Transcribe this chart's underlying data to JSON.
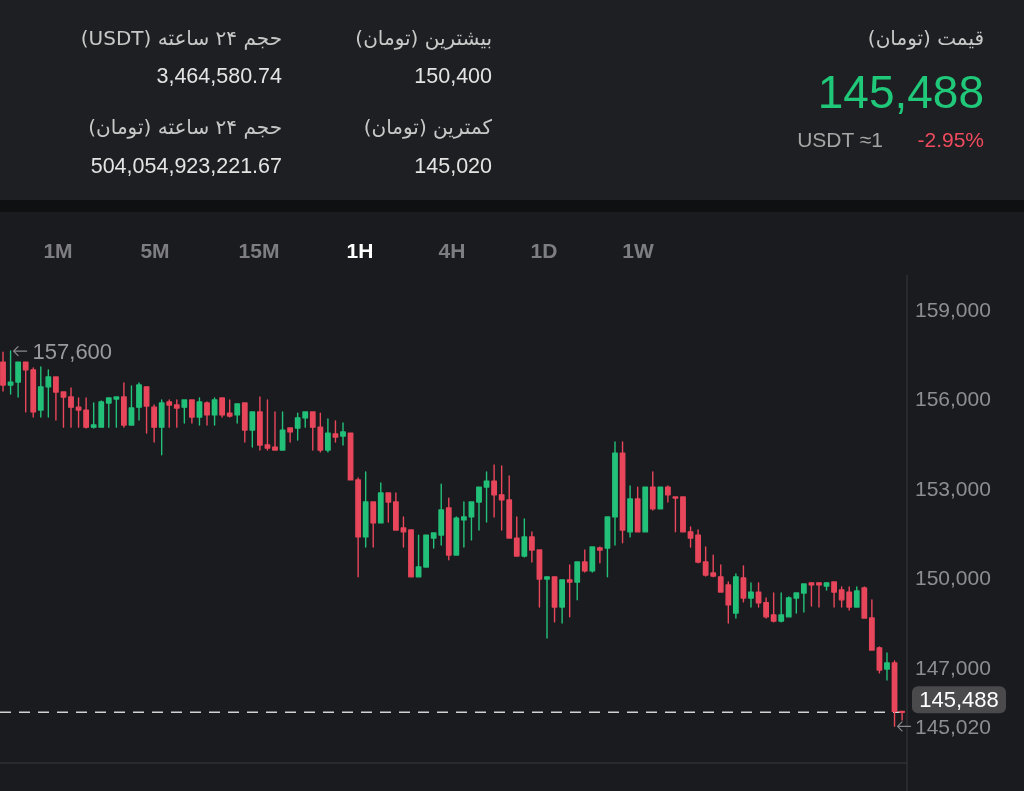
{
  "chart_data": {
    "type": "candlestick",
    "categories": [
      null,
      null,
      null,
      null,
      null,
      null,
      null,
      null,
      null,
      null,
      null,
      null,
      null,
      null,
      null,
      null,
      null,
      null,
      null,
      null,
      null,
      null,
      null,
      null,
      null,
      null,
      null,
      null,
      null,
      null,
      null,
      null,
      null,
      null,
      null,
      null,
      null,
      null,
      null,
      null,
      null,
      null,
      null,
      null,
      null,
      null,
      null,
      null,
      null,
      null,
      null,
      null,
      null,
      null,
      null,
      null,
      null,
      null,
      null,
      null,
      null,
      null,
      null,
      null,
      null,
      null,
      null,
      null,
      null,
      null,
      null,
      null,
      null,
      null,
      null,
      null,
      null,
      null,
      null,
      null,
      null,
      null,
      null,
      null,
      null,
      null,
      null,
      null,
      null,
      null,
      null,
      null,
      null,
      null,
      null,
      null,
      null,
      null,
      null,
      null,
      null,
      null,
      null,
      null,
      null,
      null,
      null,
      null,
      null,
      null,
      null,
      null,
      null,
      null,
      null,
      null,
      null,
      null,
      null,
      null
    ],
    "ohlc": [
      [
        157230,
        157560,
        156260,
        156460
      ],
      [
        156460,
        157600,
        156160,
        156560
      ],
      [
        156560,
        157230,
        156060,
        157230
      ],
      [
        157230,
        157230,
        155560,
        156970
      ],
      [
        156970,
        157030,
        155390,
        155560
      ],
      [
        155620,
        157070,
        155390,
        156400
      ],
      [
        156400,
        156970,
        155390,
        156730
      ],
      [
        156730,
        156730,
        155290,
        156230
      ],
      [
        156230,
        156230,
        155050,
        156060
      ],
      [
        156060,
        156360,
        155050,
        155720
      ],
      [
        155720,
        156030,
        155050,
        155620
      ],
      [
        155620,
        156030,
        155020,
        155050
      ],
      [
        155050,
        155860,
        155020,
        155120
      ],
      [
        155050,
        155930,
        155050,
        155890
      ],
      [
        155860,
        156030,
        155050,
        156030
      ],
      [
        155990,
        156060,
        155050,
        156060
      ],
      [
        156060,
        156530,
        155050,
        155120
      ],
      [
        155120,
        156430,
        155120,
        155690
      ],
      [
        155720,
        156530,
        155290,
        156460
      ],
      [
        156400,
        156400,
        154850,
        155760
      ],
      [
        155720,
        155790,
        154550,
        155050
      ],
      [
        155050,
        155960,
        154120,
        155860
      ],
      [
        155890,
        155960,
        155050,
        155790
      ],
      [
        155790,
        155960,
        155050,
        155690
      ],
      [
        155720,
        155960,
        155190,
        155960
      ],
      [
        155960,
        155960,
        155190,
        155390
      ],
      [
        155390,
        156030,
        155120,
        155890
      ],
      [
        155860,
        155890,
        155120,
        155460
      ],
      [
        155460,
        156030,
        155120,
        155960
      ],
      [
        156030,
        156030,
        155390,
        155460
      ],
      [
        155520,
        155960,
        155390,
        155420
      ],
      [
        155460,
        155830,
        155190,
        155830
      ],
      [
        155860,
        155860,
        154550,
        154950
      ],
      [
        154950,
        155560,
        154380,
        155560
      ],
      [
        155560,
        156060,
        154280,
        154450
      ],
      [
        154450,
        155960,
        154280,
        154350
      ],
      [
        154380,
        155560,
        154280,
        154280
      ],
      [
        154280,
        155560,
        154280,
        154950
      ],
      [
        155020,
        155020,
        154550,
        154890
      ],
      [
        155020,
        155520,
        154620,
        155360
      ],
      [
        155360,
        155560,
        155050,
        155560
      ],
      [
        155560,
        155560,
        154280,
        155050
      ],
      [
        155050,
        155520,
        154220,
        154280
      ],
      [
        154280,
        155320,
        154220,
        154850
      ],
      [
        154820,
        155260,
        154550,
        154720
      ],
      [
        154750,
        155190,
        154450,
        154890
      ],
      [
        154850,
        154850,
        153280,
        153280
      ],
      [
        153280,
        153350,
        150030,
        151370
      ],
      [
        151370,
        153550,
        151030,
        152540
      ],
      [
        152540,
        152540,
        151030,
        151840
      ],
      [
        151840,
        153180,
        151840,
        152840
      ],
      [
        152840,
        152840,
        151870,
        152540
      ],
      [
        152540,
        152840,
        151600,
        151600
      ],
      [
        151670,
        152040,
        151030,
        151540
      ],
      [
        151600,
        151600,
        150030,
        150030
      ],
      [
        150030,
        151430,
        150030,
        150360
      ],
      [
        150360,
        151430,
        150360,
        151430
      ],
      [
        151330,
        151500,
        151000,
        151500
      ],
      [
        151430,
        153140,
        151100,
        152270
      ],
      [
        152340,
        152670,
        150600,
        150760
      ],
      [
        150760,
        152040,
        150760,
        152000
      ],
      [
        151940,
        152540,
        151030,
        152040
      ],
      [
        152040,
        152540,
        151270,
        152540
      ],
      [
        152540,
        153040,
        151600,
        153040
      ],
      [
        153040,
        153550,
        151870,
        153240
      ],
      [
        153240,
        153780,
        152040,
        152780
      ],
      [
        152780,
        153750,
        151600,
        152610
      ],
      [
        152610,
        153410,
        151330,
        151330
      ],
      [
        151330,
        152040,
        150730,
        150730
      ],
      [
        150730,
        151970,
        150700,
        151370
      ],
      [
        151370,
        151540,
        150530,
        150930
      ],
      [
        150930,
        150930,
        149020,
        149960
      ],
      [
        149960,
        150030,
        147980,
        150030
      ],
      [
        150030,
        150030,
        148520,
        149020
      ],
      [
        149020,
        149930,
        148480,
        149930
      ],
      [
        149930,
        150430,
        148690,
        149860
      ],
      [
        149860,
        150530,
        149260,
        150530
      ],
      [
        150530,
        150930,
        150190,
        150230
      ],
      [
        150230,
        151030,
        150190,
        151030
      ],
      [
        151000,
        151030,
        150500,
        150930
      ],
      [
        151000,
        152040,
        150030,
        152040
      ],
      [
        152040,
        154550,
        151100,
        154180
      ],
      [
        154180,
        154550,
        151170,
        151600
      ],
      [
        151540,
        153080,
        151370,
        152640
      ],
      [
        152640,
        153040,
        151540,
        151540
      ],
      [
        151540,
        153040,
        151540,
        153040
      ],
      [
        153040,
        153550,
        152270,
        152310
      ],
      [
        152310,
        153040,
        152310,
        153040
      ],
      [
        153040,
        153080,
        152540,
        152780
      ],
      [
        152710,
        152710,
        151540,
        152670
      ],
      [
        152710,
        152710,
        151540,
        151540
      ],
      [
        151540,
        151700,
        151030,
        151330
      ],
      [
        151430,
        151600,
        150500,
        150530
      ],
      [
        150530,
        151030,
        150060,
        150090
      ],
      [
        150160,
        150760,
        150030,
        150060
      ],
      [
        150030,
        150430,
        149520,
        149520
      ],
      [
        149760,
        149860,
        148480,
        149090
      ],
      [
        148820,
        150130,
        148650,
        150030
      ],
      [
        149990,
        150400,
        149190,
        149320
      ],
      [
        149320,
        149830,
        149020,
        149520
      ],
      [
        149520,
        149830,
        149020,
        149160
      ],
      [
        149160,
        149320,
        148650,
        148690
      ],
      [
        148750,
        149490,
        148520,
        148550
      ],
      [
        148550,
        149490,
        148520,
        148750
      ],
      [
        148690,
        149360,
        148690,
        149320
      ],
      [
        149320,
        149490,
        148820,
        149490
      ],
      [
        149490,
        149790,
        148850,
        149790
      ],
      [
        149830,
        149830,
        149050,
        149760
      ],
      [
        149830,
        149830,
        149020,
        149760
      ],
      [
        149720,
        149830,
        149590,
        149830
      ],
      [
        149860,
        149860,
        149020,
        149520
      ],
      [
        149590,
        149690,
        149020,
        149260
      ],
      [
        149520,
        149690,
        148920,
        149020
      ],
      [
        149020,
        149690,
        149020,
        149560
      ],
      [
        149660,
        149690,
        148650,
        148650
      ],
      [
        148650,
        149260,
        147580,
        147580
      ],
      [
        147650,
        147680,
        146810,
        146910
      ],
      [
        146940,
        147480,
        146570,
        147140
      ],
      [
        147140,
        147210,
        145020,
        145520
      ],
      [
        145520,
        145520,
        145230,
        145488
      ]
    ],
    "colors": [
      "#e8465b",
      "#22c079",
      "#22c079",
      "#e8465b",
      "#e8465b",
      "#22c079",
      "#22c079",
      "#e8465b",
      "#e8465b",
      "#e8465b",
      "#e8465b",
      "#e8465b",
      "#22c079",
      "#22c079",
      "#22c079",
      "#22c079",
      "#e8465b",
      "#22c079",
      "#22c079",
      "#e8465b",
      "#e8465b",
      "#22c079",
      "#e8465b",
      "#e8465b",
      "#22c079",
      "#e8465b",
      "#22c079",
      "#e8465b",
      "#22c079",
      "#e8465b",
      "#e8465b",
      "#22c079",
      "#e8465b",
      "#22c079",
      "#e8465b",
      "#e8465b",
      "#e8465b",
      "#22c079",
      "#e8465b",
      "#22c079",
      "#22c079",
      "#e8465b",
      "#e8465b",
      "#22c079",
      "#e8465b",
      "#22c079",
      "#e8465b",
      "#e8465b",
      "#22c079",
      "#e8465b",
      "#22c079",
      "#e8465b",
      "#e8465b",
      "#e8465b",
      "#e8465b",
      "#22c079",
      "#22c079",
      "#22c079",
      "#22c079",
      "#e8465b",
      "#22c079",
      "#22c079",
      "#22c079",
      "#22c079",
      "#22c079",
      "#e8465b",
      "#e8465b",
      "#e8465b",
      "#e8465b",
      "#22c079",
      "#e8465b",
      "#e8465b",
      "#22c079",
      "#e8465b",
      "#22c079",
      "#e8465b",
      "#22c079",
      "#e8465b",
      "#22c079",
      "#e8465b",
      "#22c079",
      "#22c079",
      "#e8465b",
      "#22c079",
      "#e8465b",
      "#22c079",
      "#e8465b",
      "#22c079",
      "#e8465b",
      "#e8465b",
      "#e8465b",
      "#e8465b",
      "#e8465b",
      "#e8465b",
      "#e8465b",
      "#e8465b",
      "#e8465b",
      "#22c079",
      "#e8465b",
      "#22c079",
      "#e8465b",
      "#e8465b",
      "#e8465b",
      "#22c079",
      "#22c079",
      "#22c079",
      "#22c079",
      "#e8465b",
      "#e8465b",
      "#22c079",
      "#e8465b",
      "#e8465b",
      "#e8465b",
      "#22c079",
      "#e8465b",
      "#e8465b",
      "#e8465b",
      "#22c079",
      "#e8465b",
      "#e8465b"
    ],
    "ylim": [
      143790,
      160150
    ],
    "yticks": [
      {
        "value": 145020,
        "label": "145,020"
      },
      {
        "value": 147000,
        "label": "147,000"
      },
      {
        "value": 150000,
        "label": "150,000"
      },
      {
        "value": 153000,
        "label": "153,000"
      },
      {
        "value": 156000,
        "label": "156,000"
      },
      {
        "value": 159000,
        "label": "159,000"
      }
    ],
    "ref_lines": [
      {
        "axis": "y",
        "value": 145488,
        "label": "145,488",
        "line_style": "dashed",
        "color": "#d2d2d2"
      }
    ],
    "annotations": [
      "قیمت (تومان)",
      "145,488",
      "-2.95%",
      "USDT ≈1",
      "بیشترین (تومان)",
      "150,400",
      "کمترین (تومان)",
      "145,020",
      "حجم ۲۴ ساعته (USDT)",
      "3,464,580.74",
      "حجم ۲۴ ساعته (تومان)",
      "504,054,923,221.67",
      "1M",
      "5M",
      "15M",
      "1H",
      "4H",
      "1D",
      "1W",
      "157,600"
    ]
  }
}
